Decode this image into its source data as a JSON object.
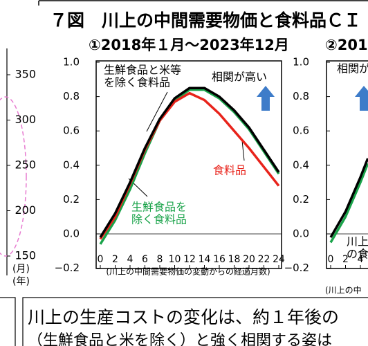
{
  "page": {
    "title": "７図　川上の中間需要物価と食料品ＣＩ",
    "bottom_text": [
      "川上の生産コストの変化は、約１年後の",
      "（生鮮食品と米を除く）と強く相関する姿は"
    ]
  },
  "chart_data": [
    {
      "type": "line",
      "subtitle": "①2018年１月～2023年12月",
      "x_label": "(川上の中間需要物価の変動からの経過月数)",
      "x": [
        0,
        2,
        4,
        6,
        8,
        10,
        12,
        14,
        16,
        18,
        20,
        22,
        24
      ],
      "xlim": [
        0,
        24
      ],
      "xticks": [
        0,
        2,
        4,
        6,
        8,
        10,
        12,
        14,
        16,
        18,
        20,
        22,
        24
      ],
      "ylim": [
        -0.2,
        1.0
      ],
      "yticks": [
        {
          "value": -0.2,
          "label": "−0.2"
        },
        {
          "value": 0,
          "label": "0.0"
        },
        0.2,
        0.4,
        0.6,
        0.8,
        {
          "value": 1,
          "label": "1.0"
        }
      ],
      "series": [
        {
          "name": "生鮮食品を除く食料品",
          "color": "#1aa34a",
          "values": [
            -0.06,
            0.08,
            0.26,
            0.47,
            0.66,
            0.78,
            0.84,
            0.84,
            0.79,
            0.71,
            0.61,
            0.48,
            0.35
          ]
        },
        {
          "name": "食料品",
          "color": "#e8231b",
          "values": [
            -0.03,
            0.1,
            0.29,
            0.49,
            0.66,
            0.77,
            0.82,
            0.78,
            0.7,
            0.6,
            0.5,
            0.39,
            0.28
          ]
        },
        {
          "name": "生鮮食品と米等を除く食料品",
          "color": "#000000",
          "values": [
            -0.02,
            0.12,
            0.3,
            0.5,
            0.67,
            0.79,
            0.85,
            0.85,
            0.8,
            0.72,
            0.62,
            0.49,
            0.36
          ]
        }
      ],
      "annotations": [
        {
          "lines": [
            "生鮮食品と米等",
            "を除く食料品"
          ],
          "color": "#000000"
        },
        {
          "lines": [
            "相関が高い"
          ],
          "color": "#000000"
        },
        {
          "lines": [
            "食料品"
          ],
          "color": "#e8231b"
        },
        {
          "lines": [
            "生鮮食品を",
            "除く食料品"
          ],
          "color": "#1aa34a"
        }
      ]
    },
    {
      "type": "line",
      "subtitle": "②201",
      "x_label": "(川上の中",
      "x": [
        0,
        2,
        4,
        5
      ],
      "xlim": [
        0,
        24
      ],
      "xticks": [
        0,
        2,
        4
      ],
      "ylim": [
        -0.2,
        1.0
      ],
      "yticks": [
        {
          "value": -0.2,
          "label": "−0.2"
        },
        {
          "value": 0,
          "label": "0.0"
        },
        0.2,
        0.4,
        0.6,
        0.8,
        {
          "value": 1,
          "label": "1.0"
        }
      ],
      "series": [
        {
          "color": "#1aa34a",
          "values": [
            -0.05,
            0.1,
            0.3,
            0.41
          ]
        },
        {
          "color": "#000000",
          "values": [
            -0.02,
            0.13,
            0.33,
            0.44
          ]
        }
      ],
      "annotations": [
        {
          "lines": [
            "相関が"
          ],
          "color": "#000000"
        },
        {
          "lines": [
            "川上",
            "の食"
          ],
          "color": "#000000"
        }
      ]
    },
    {
      "type": "axis",
      "ylim": [
        150,
        350
      ],
      "yticks": [
        150,
        200,
        250,
        300,
        350
      ],
      "x_labels": [
        "(月)",
        "(年)"
      ]
    }
  ]
}
